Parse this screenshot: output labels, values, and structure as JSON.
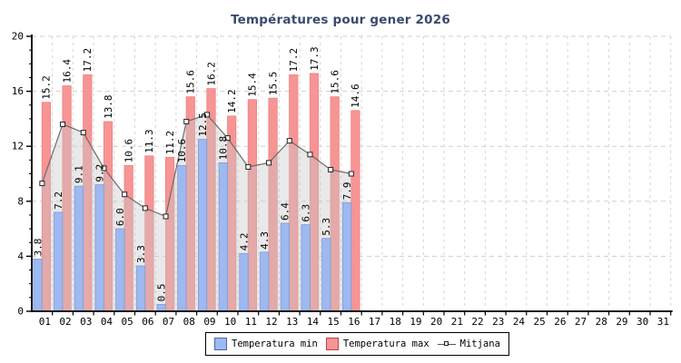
{
  "title": "Températures pour gener 2026",
  "colors": {
    "title": "#3a4a6e",
    "axis": "#000000",
    "grid": "#cfcfcf",
    "min_fill": "#9db9f0",
    "min_border": "#7e9ad9",
    "min_swatch_border": "#4a66a8",
    "max_fill": "#f79494",
    "max_border": "#ee8282",
    "max_swatch_border": "#bb4444",
    "area_fill": "rgba(200,200,200,0.4)",
    "line": "#6a6a6a",
    "marker_fill": "#ffffff",
    "marker_border": "#222222",
    "label_text": "#000000"
  },
  "legend": {
    "items": [
      {
        "label": "Temperatura min",
        "swatch": "box-blue"
      },
      {
        "label": "Temperatura max",
        "swatch": "box-red"
      },
      {
        "label": "Mitjana",
        "swatch": "line-marker"
      }
    ]
  },
  "chart_data": {
    "type": "bar",
    "title": "Températures pour gener 2026",
    "xlabel": "",
    "ylabel": "",
    "ylim": [
      0,
      20
    ],
    "yticks": [
      0,
      4,
      8,
      12,
      16,
      20
    ],
    "minor_tick_step": 1,
    "grid": "dashed",
    "legend_position": "bottom",
    "value_labels_rotated": true,
    "categories": [
      "01",
      "02",
      "03",
      "04",
      "05",
      "06",
      "07",
      "08",
      "09",
      "10",
      "11",
      "12",
      "13",
      "14",
      "15",
      "16",
      "17",
      "18",
      "19",
      "20",
      "21",
      "22",
      "23",
      "24",
      "25",
      "26",
      "27",
      "28",
      "29",
      "30",
      "31"
    ],
    "series": [
      {
        "name": "Temperatura min",
        "type": "bar",
        "values": [
          3.8,
          7.2,
          9.1,
          9.2,
          6.0,
          3.3,
          0.5,
          10.6,
          12.5,
          10.8,
          4.2,
          4.3,
          6.4,
          6.3,
          5.3,
          7.9
        ]
      },
      {
        "name": "Temperatura max",
        "type": "bar",
        "values": [
          15.2,
          16.4,
          17.2,
          13.8,
          10.6,
          11.3,
          11.2,
          15.6,
          16.2,
          14.2,
          15.4,
          15.5,
          17.2,
          17.3,
          15.6,
          14.6
        ]
      },
      {
        "name": "Mitjana",
        "type": "line-area",
        "values": [
          9.3,
          13.6,
          13.0,
          10.4,
          8.5,
          7.5,
          6.9,
          13.8,
          14.3,
          12.6,
          10.5,
          10.8,
          12.4,
          11.4,
          10.3,
          10.0
        ]
      }
    ]
  }
}
